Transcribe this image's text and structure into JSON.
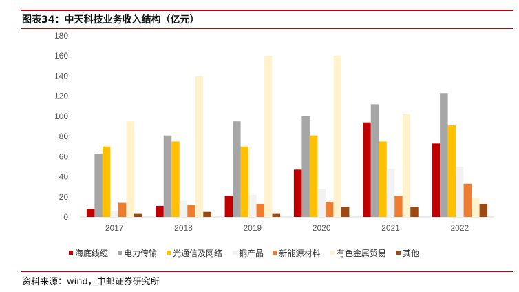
{
  "header": {
    "title": "图表34：中天科技业务收入结构（亿元）"
  },
  "footer": {
    "source": "资料来源：wind，中邮证券研究所"
  },
  "chart_data": {
    "type": "bar",
    "title": "图表34：中天科技业务收入结构（亿元）",
    "categories": [
      "2017",
      "2018",
      "2019",
      "2020",
      "2021",
      "2022"
    ],
    "ylim": [
      0,
      180
    ],
    "yticks": [
      0,
      20,
      40,
      60,
      80,
      100,
      120,
      140,
      160,
      180
    ],
    "grid": false,
    "legend_position": "bottom",
    "series": [
      {
        "name": "海底线缆",
        "color": "#c00000",
        "values": [
          8,
          11,
          21,
          47,
          94,
          73
        ]
      },
      {
        "name": "电力传输",
        "color": "#a6a6a6",
        "values": [
          63,
          81,
          95,
          100,
          112,
          123
        ]
      },
      {
        "name": "光通信及网络",
        "color": "#ffc000",
        "values": [
          70,
          75,
          70,
          81,
          75,
          91
        ]
      },
      {
        "name": "铜产品",
        "color": "#f2f2f2",
        "values": [
          6,
          16,
          22,
          28,
          48,
          50
        ]
      },
      {
        "name": "新能源材料",
        "color": "#ed7d31",
        "values": [
          14,
          12,
          13,
          15,
          21,
          33
        ]
      },
      {
        "name": "有色金属贸易",
        "color": "#fff2cc",
        "values": [
          95,
          140,
          160,
          160,
          102,
          19
        ]
      },
      {
        "name": "其他",
        "color": "#9c4a12",
        "values": [
          3,
          5,
          3,
          10,
          10,
          13
        ]
      }
    ]
  }
}
